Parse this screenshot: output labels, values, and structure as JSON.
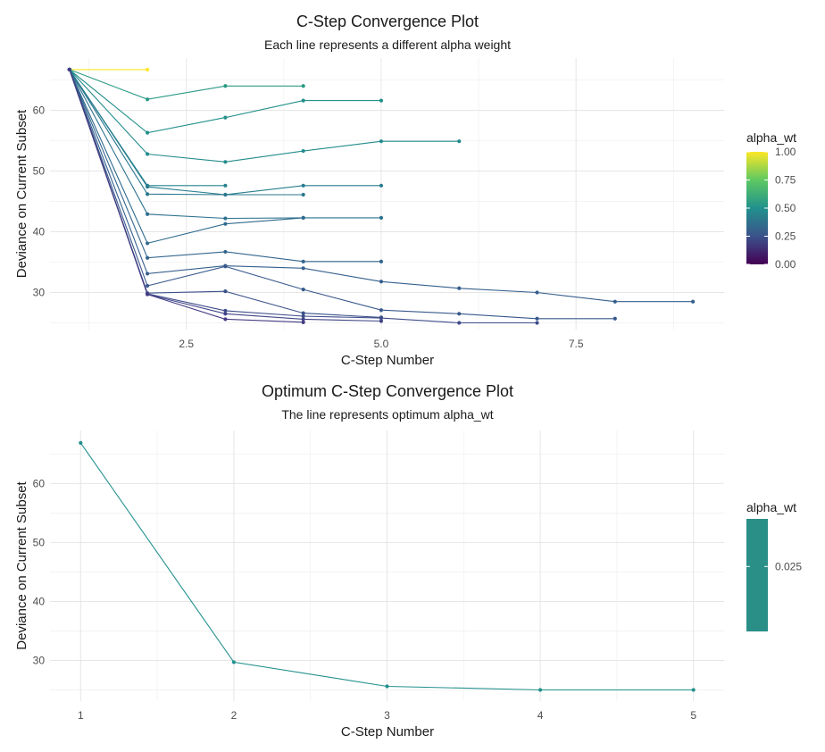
{
  "chart_data": [
    {
      "type": "line",
      "title": "C-Step Convergence Plot",
      "subtitle": "Each line represents a different alpha weight",
      "xlabel": "C-Step Number",
      "ylabel": "Deviance on Current Subset",
      "xlim": [
        0.75,
        9.4
      ],
      "ylim": [
        23.9,
        68.6
      ],
      "xticks": [
        2.5,
        5.0,
        7.5
      ],
      "xtick_labels": [
        "2.5",
        "5.0",
        "7.5"
      ],
      "yticks": [
        30,
        40,
        50,
        60
      ],
      "ytick_labels": [
        "30",
        "40",
        "50",
        "60"
      ],
      "grid": true,
      "legend": {
        "title": "alpha_wt",
        "type": "colorbar",
        "placement": "right",
        "ticks": [
          0.0,
          0.25,
          0.5,
          0.75,
          1.0
        ],
        "tick_labels": [
          "0.00",
          "0.25",
          "0.50",
          "0.75",
          "1.00"
        ],
        "gradient_colors": [
          "#440154",
          "#3b528b",
          "#21918c",
          "#5ec962",
          "#fde725"
        ]
      },
      "series": [
        {
          "color": "#fde725",
          "x": [
            1,
            2
          ],
          "y": [
            66.7,
            66.7
          ]
        },
        {
          "color": "#2a9a86",
          "x": [
            1,
            2,
            3,
            4
          ],
          "y": [
            66.7,
            61.8,
            64.0,
            64.0
          ]
        },
        {
          "color": "#23908a",
          "x": [
            1,
            2,
            3,
            4,
            5
          ],
          "y": [
            66.7,
            56.3,
            58.8,
            61.6,
            61.6
          ]
        },
        {
          "color": "#228b8d",
          "x": [
            1,
            2,
            3,
            4,
            5,
            6
          ],
          "y": [
            66.7,
            52.8,
            51.5,
            53.3,
            54.9,
            54.9
          ]
        },
        {
          "color": "#25838e",
          "x": [
            1,
            2,
            3
          ],
          "y": [
            66.7,
            47.6,
            47.6
          ]
        },
        {
          "color": "#277d8e",
          "x": [
            1,
            2,
            3,
            4,
            5
          ],
          "y": [
            66.7,
            47.4,
            46.1,
            47.6,
            47.6
          ]
        },
        {
          "color": "#2a778e",
          "x": [
            1,
            2,
            3,
            4
          ],
          "y": [
            66.7,
            46.2,
            46.1,
            46.1
          ]
        },
        {
          "color": "#2c718e",
          "x": [
            1,
            2,
            3,
            4,
            5
          ],
          "y": [
            66.7,
            42.9,
            42.2,
            42.3,
            42.3
          ]
        },
        {
          "color": "#2f6b8e",
          "x": [
            1,
            2,
            3,
            4
          ],
          "y": [
            66.7,
            38.1,
            41.3,
            42.3
          ]
        },
        {
          "color": "#32658e",
          "x": [
            1,
            2,
            3,
            4,
            5
          ],
          "y": [
            66.7,
            35.7,
            36.7,
            35.1,
            35.1
          ]
        },
        {
          "color": "#355f8d",
          "x": [
            1,
            2,
            3,
            4,
            5,
            6,
            7,
            8,
            9
          ],
          "y": [
            66.7,
            33.1,
            34.4,
            34.0,
            31.8,
            30.7,
            30.0,
            28.5,
            28.5
          ]
        },
        {
          "color": "#38598c",
          "x": [
            1,
            2,
            3,
            4,
            5,
            6,
            7,
            8
          ],
          "y": [
            66.7,
            31.1,
            34.3,
            30.5,
            27.1,
            26.5,
            25.7,
            25.7
          ]
        },
        {
          "color": "#3b528b",
          "x": [
            1,
            2,
            3,
            4,
            5
          ],
          "y": [
            66.7,
            29.9,
            30.2,
            26.6,
            25.9
          ]
        },
        {
          "color": "#3e4c8a",
          "x": [
            1,
            2,
            3,
            4,
            5,
            6,
            7
          ],
          "y": [
            66.7,
            29.8,
            27.0,
            26.1,
            25.8,
            25.0,
            25.0
          ]
        },
        {
          "color": "#414487",
          "x": [
            1,
            2,
            3,
            4,
            5
          ],
          "y": [
            66.7,
            29.7,
            26.5,
            25.6,
            25.3
          ]
        },
        {
          "color": "#453c83",
          "x": [
            1,
            2,
            3,
            4
          ],
          "y": [
            66.7,
            29.7,
            25.6,
            25.1
          ]
        }
      ]
    },
    {
      "type": "line",
      "title": "Optimum C-Step Convergence Plot",
      "subtitle": "The line represents optimum alpha_wt",
      "xlabel": "C-Step Number",
      "ylabel": "Deviance on Current Subset",
      "xlim": [
        0.8,
        5.2
      ],
      "ylim": [
        23.1,
        69.0
      ],
      "xticks": [
        1,
        2,
        3,
        4,
        5
      ],
      "xtick_labels": [
        "1",
        "2",
        "3",
        "4",
        "5"
      ],
      "yticks": [
        30,
        40,
        50,
        60
      ],
      "ytick_labels": [
        "30",
        "40",
        "50",
        "60"
      ],
      "grid": true,
      "legend": {
        "title": "alpha_wt",
        "type": "colorbar",
        "placement": "right",
        "ticks": [
          0.025
        ],
        "tick_labels": [
          "0.025"
        ],
        "gradient_colors": [
          "#2a8f87",
          "#2a8f87"
        ]
      },
      "series": [
        {
          "color": "#21908c",
          "x": [
            1,
            2,
            3,
            4,
            5
          ],
          "y": [
            66.9,
            29.7,
            25.6,
            25.0,
            25.0
          ]
        }
      ]
    }
  ]
}
